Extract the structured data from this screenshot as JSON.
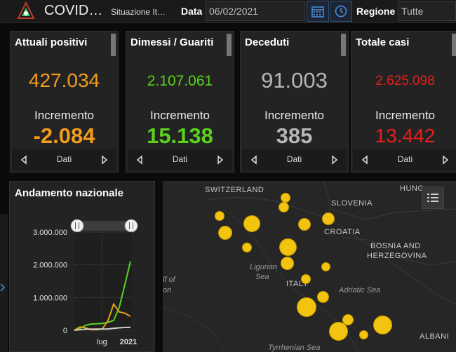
{
  "header": {
    "title": "COVID…",
    "subtitle": "Situazione It…",
    "date_label": "Data",
    "date_value": "06/02/2021",
    "region_label": "Regione",
    "region_value": "Tutte",
    "calendar_icon": "calendar-icon",
    "clock_icon": "clock-icon"
  },
  "cards": [
    {
      "title": "Attuali positivi",
      "value": "427.034",
      "increment_label": "Incremento",
      "increment": "-2.084",
      "nav_label": "Dati",
      "color": "#f39c1d"
    },
    {
      "title": "Dimessi / Guariti",
      "value": "2.107.061",
      "increment_label": "Incremento",
      "increment": "15.138",
      "nav_label": "Dati",
      "color": "#5ad21b"
    },
    {
      "title": "Deceduti",
      "value": "91.003",
      "increment_label": "Incremento",
      "increment": "385",
      "nav_label": "Dati",
      "color": "#b5b5b5"
    },
    {
      "title": "Totale casi",
      "value": "2.625.098",
      "increment_label": "Incremento",
      "increment": "13.442",
      "nav_label": "Dati",
      "color": "#e3201b"
    }
  ],
  "trend": {
    "title": "Andamento nazionale",
    "chart_data": {
      "type": "line",
      "y_tick_labels": [
        "3.000.000",
        "2.000.000",
        "1.000.000",
        "0"
      ],
      "x_tick_labels": [
        "lug",
        "2021"
      ],
      "ylim": [
        0,
        3000000
      ],
      "series": [
        {
          "color": "#5ad21b",
          "values": [
            0,
            60000,
            150000,
            190000,
            200000,
            210000,
            240000,
            300000,
            700000,
            1400000,
            2107061
          ]
        },
        {
          "color": "#e3a21b",
          "values": [
            0,
            100000,
            70000,
            20000,
            15000,
            40000,
            300000,
            800000,
            560000,
            520000,
            427034
          ]
        },
        {
          "color": "#cfcfcf",
          "values": [
            0,
            20000,
            33000,
            35000,
            35500,
            36000,
            40000,
            60000,
            75000,
            85000,
            91003
          ]
        }
      ]
    }
  },
  "map": {
    "labels": [
      {
        "text": "SWITZERLAND",
        "sea": false
      },
      {
        "text": "HUNG",
        "sea": false
      },
      {
        "text": "SLOVENIA",
        "sea": false
      },
      {
        "text": "CROATIA",
        "sea": false
      },
      {
        "text": "BOSNIA AND",
        "sea": false
      },
      {
        "text": "HERZEGOVINA",
        "sea": false
      },
      {
        "text": "Ligurian",
        "sea": true
      },
      {
        "text": "Sea",
        "sea": true
      },
      {
        "text": "ITALY",
        "sea": false
      },
      {
        "text": "Adriatic Sea",
        "sea": true
      },
      {
        "text": "lf of",
        "sea": true
      },
      {
        "text": "on",
        "sea": true
      },
      {
        "text": "Tyrrhenian Sea",
        "sea": true
      },
      {
        "text": "ALBANI",
        "sea": false
      }
    ],
    "legend_icon": "list-icon"
  }
}
